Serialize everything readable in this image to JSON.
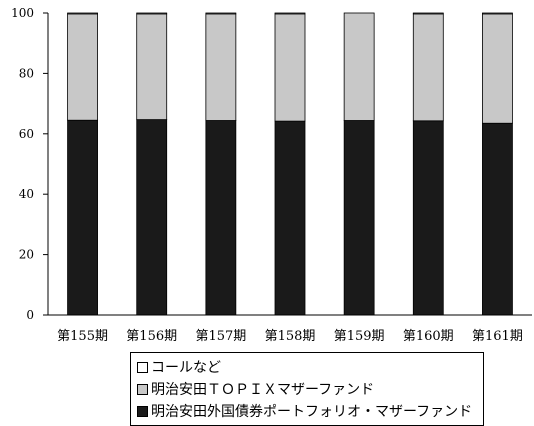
{
  "chart_data": {
    "type": "bar",
    "stacked": true,
    "categories": [
      "第155期",
      "第156期",
      "第157期",
      "第158期",
      "第159期",
      "第160期",
      "第161期"
    ],
    "series": [
      {
        "name": "明治安田外国債券ポートフォリオ・マザーファンド",
        "color": "#1a1a1a",
        "values": [
          64.5,
          64.7,
          64.4,
          64.2,
          64.4,
          64.3,
          63.5
        ]
      },
      {
        "name": "明治安田ＴＯＰＩＸマザーファンド",
        "color": "#c8c8c8",
        "values": [
          35.2,
          35.0,
          35.3,
          35.5,
          35.6,
          35.4,
          36.2
        ]
      },
      {
        "name": "コールなど",
        "color": "#ffffff",
        "values": [
          0.3,
          0.3,
          0.3,
          0.3,
          0.0,
          0.3,
          0.3
        ]
      }
    ],
    "ylim": [
      0,
      100
    ],
    "yticks": [
      0,
      20,
      40,
      60,
      80,
      100
    ],
    "grid": false,
    "legend_position": "bottom"
  },
  "legend": {
    "items": [
      {
        "label": "コールなど",
        "color": "#ffffff"
      },
      {
        "label": "明治安田ＴＯＰＩＸマザーファンド",
        "color": "#c8c8c8"
      },
      {
        "label": "明治安田外国債券ポートフォリオ・マザーファンド",
        "color": "#1a1a1a"
      }
    ]
  }
}
